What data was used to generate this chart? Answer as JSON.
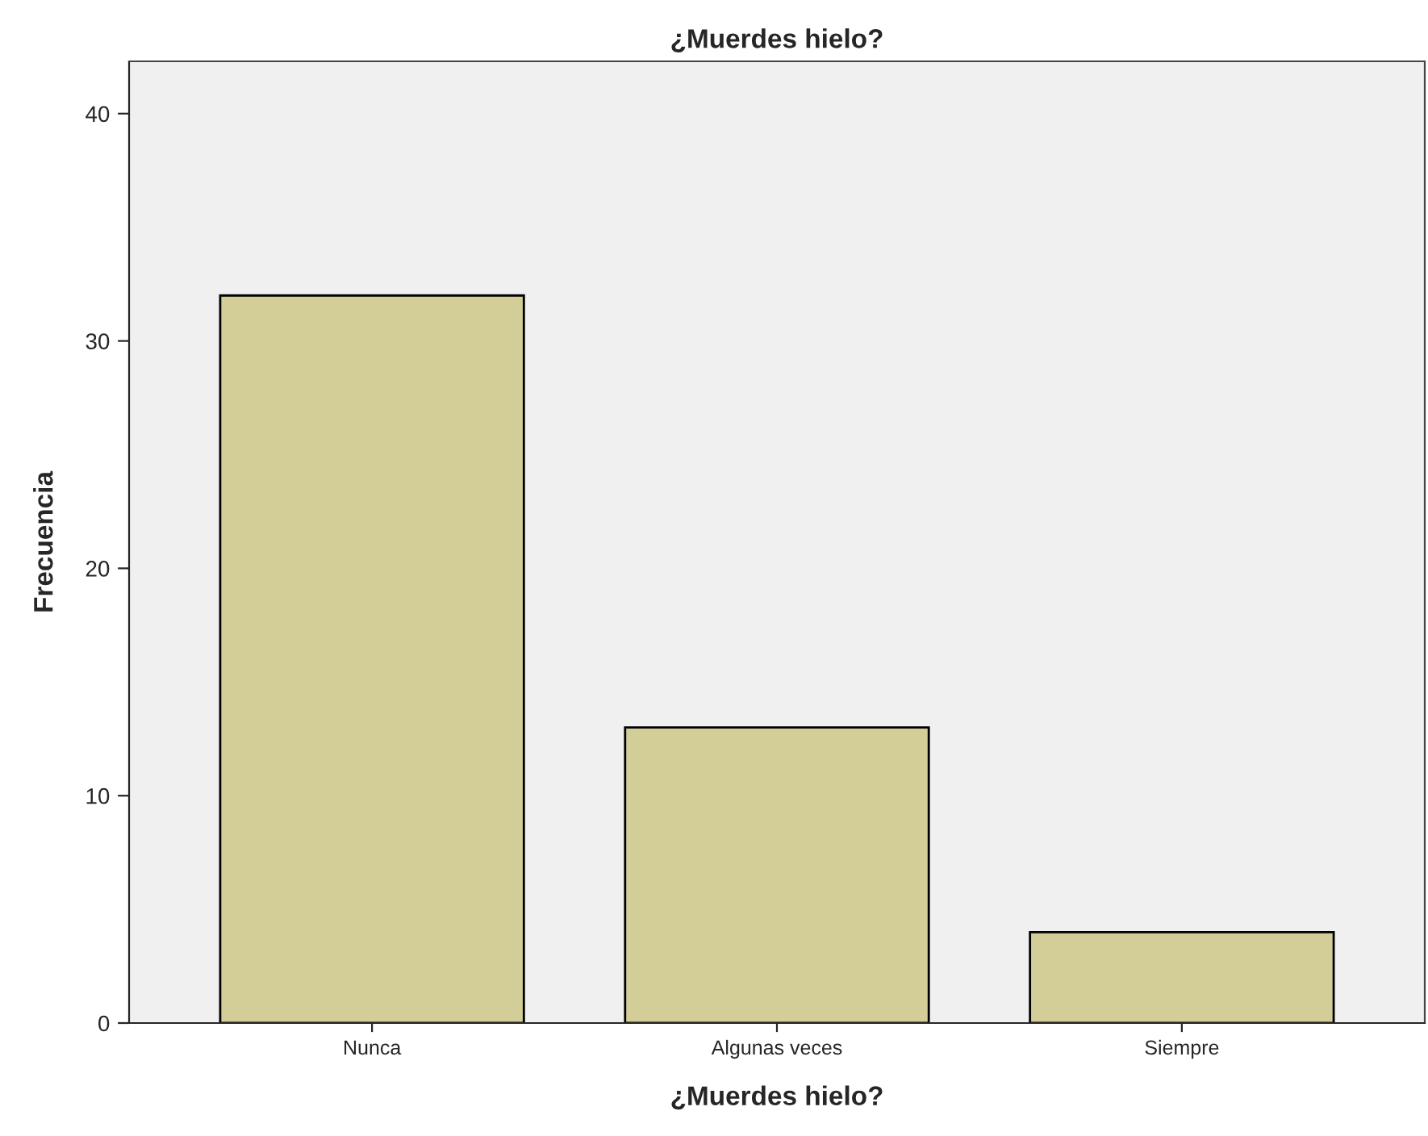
{
  "chart_data": {
    "type": "bar",
    "title": "¿Muerdes hielo?",
    "xlabel": "¿Muerdes hielo?",
    "ylabel": "Frecuencia",
    "categories": [
      "Nunca",
      "Algunas veces",
      "Siempre"
    ],
    "values": [
      32,
      13,
      4
    ],
    "color": "#d3ce97",
    "ylim": [
      0,
      42.3
    ],
    "yticks": [
      0,
      10,
      20,
      30,
      40
    ],
    "grid": false,
    "legend": false
  }
}
